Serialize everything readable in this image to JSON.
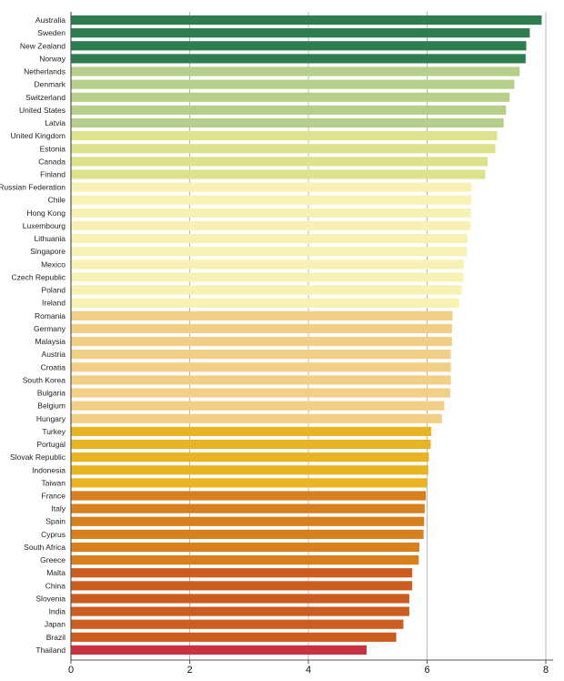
{
  "chart_data": {
    "type": "bar",
    "orientation": "horizontal",
    "title": "",
    "xlabel": "",
    "ylabel": "",
    "xlim": [
      0,
      8
    ],
    "x_ticks": [
      "0",
      "2",
      "4",
      "6",
      "8"
    ],
    "grid": "vertical",
    "categories": [
      "Australia",
      "Sweden",
      "New Zealand",
      "Norway",
      "Netherlands",
      "Denmark",
      "Switzerland",
      "United States",
      "Latvia",
      "United Kingdom",
      "Estonia",
      "Canada",
      "Finland",
      "Russian Federation",
      "Chile",
      "Hong Kong",
      "Luxembourg",
      "Lithuania",
      "Singapore",
      "Mexico",
      "Czech Republic",
      "Poland",
      "Ireland",
      "Romania",
      "Germany",
      "Malaysia",
      "Austria",
      "Croatia",
      "South Korea",
      "Bulgaria",
      "Belgium",
      "Hungary",
      "Turkey",
      "Portugal",
      "Slovak Republic",
      "Indonesia",
      "Taiwan",
      "France",
      "Italy",
      "Spain",
      "Cyprus",
      "South Africa",
      "Greece",
      "Malta",
      "China",
      "Slovenia",
      "India",
      "Japan",
      "Brazil",
      "Thailand"
    ],
    "values": [
      7.93,
      7.73,
      7.67,
      7.66,
      7.56,
      7.47,
      7.39,
      7.33,
      7.29,
      7.18,
      7.15,
      7.02,
      6.98,
      6.75,
      6.75,
      6.74,
      6.73,
      6.68,
      6.67,
      6.62,
      6.61,
      6.58,
      6.54,
      6.43,
      6.42,
      6.42,
      6.4,
      6.4,
      6.4,
      6.39,
      6.29,
      6.25,
      6.07,
      6.06,
      6.03,
      6.02,
      6.0,
      5.98,
      5.96,
      5.95,
      5.94,
      5.87,
      5.86,
      5.75,
      5.75,
      5.7,
      5.7,
      5.6,
      5.48,
      4.98
    ],
    "colors": [
      "#2e7d4f",
      "#2e7d4f",
      "#2e7d4f",
      "#2e7d4f",
      "#b6cf8b",
      "#b6cf8b",
      "#b6cf8b",
      "#b6cf8b",
      "#b6cf8b",
      "#dde38c",
      "#dde38c",
      "#dde38c",
      "#dde38c",
      "#f7f2b4",
      "#f7f2b4",
      "#f7f2b4",
      "#f7f2b4",
      "#f7f2b4",
      "#f7f2b4",
      "#f7f2b4",
      "#f7f2b4",
      "#f7f2b4",
      "#f7f2b4",
      "#f2cf86",
      "#f2cf86",
      "#f2cf86",
      "#f2cf86",
      "#f2cf86",
      "#f2cf86",
      "#f2cf86",
      "#f2cf86",
      "#f2cf86",
      "#e8b424",
      "#e8b424",
      "#e8b424",
      "#e8b424",
      "#e8b424",
      "#d9801e",
      "#d9801e",
      "#d9801e",
      "#d9801e",
      "#d9801e",
      "#d9801e",
      "#cc5d20",
      "#cc5d20",
      "#cc5d20",
      "#cc5d20",
      "#cc5d20",
      "#cc5d20",
      "#c9313e"
    ],
    "gridline_color": "#bbbbbb",
    "axis_color": "#555555"
  }
}
